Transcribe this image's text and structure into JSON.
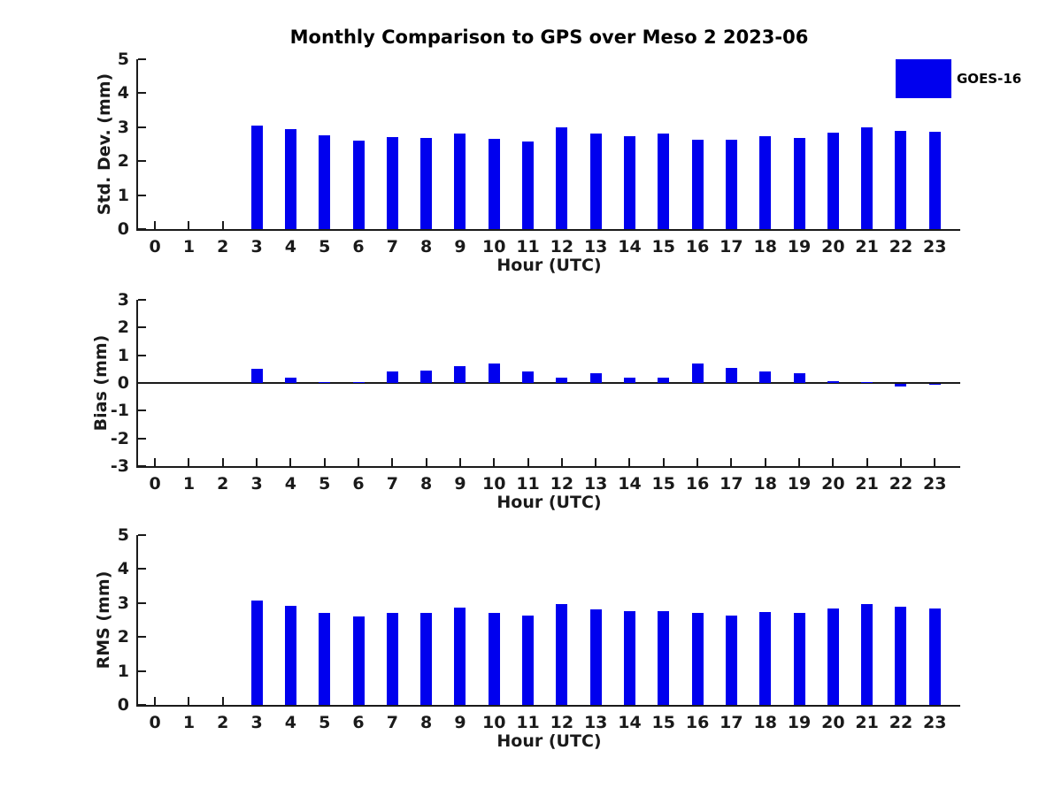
{
  "title": "Monthly Comparison to GPS over Meso 2 2023-06",
  "xlabel": "Hour (UTC)",
  "legend": {
    "label": "GOES-16",
    "color": "#0000ee"
  },
  "bar_color": "#0000ee",
  "chart_data": [
    {
      "type": "bar",
      "title": "Std. Dev. subplot",
      "ylabel": "Std. Dev. (mm)",
      "xlabel": "Hour (UTC)",
      "ylim": [
        0,
        5
      ],
      "yticks": [
        0,
        1,
        2,
        3,
        4,
        5
      ],
      "categories": [
        0,
        1,
        2,
        3,
        4,
        5,
        6,
        7,
        8,
        9,
        10,
        11,
        12,
        13,
        14,
        15,
        16,
        17,
        18,
        19,
        20,
        21,
        22,
        23
      ],
      "series": [
        {
          "name": "GOES-16",
          "values": [
            0,
            0,
            0,
            3.05,
            2.93,
            2.75,
            2.6,
            2.7,
            2.69,
            2.8,
            2.65,
            2.58,
            3.0,
            2.8,
            2.74,
            2.8,
            2.64,
            2.62,
            2.74,
            2.69,
            2.83,
            2.99,
            2.9,
            2.86
          ]
        }
      ],
      "grid": false,
      "legend_position": "upper right outside"
    },
    {
      "type": "bar",
      "title": "Bias subplot",
      "ylabel": "Bias (mm)",
      "xlabel": "Hour (UTC)",
      "ylim": [
        -3,
        3
      ],
      "yticks": [
        -3,
        -2,
        -1,
        0,
        1,
        2,
        3
      ],
      "categories": [
        0,
        1,
        2,
        3,
        4,
        5,
        6,
        7,
        8,
        9,
        10,
        11,
        12,
        13,
        14,
        15,
        16,
        17,
        18,
        19,
        20,
        21,
        22,
        23
      ],
      "series": [
        {
          "name": "GOES-16",
          "values": [
            0,
            0,
            0,
            0.52,
            0.2,
            0.04,
            0.02,
            0.4,
            0.46,
            0.62,
            0.7,
            0.43,
            0.2,
            0.36,
            0.18,
            0.18,
            0.7,
            0.55,
            0.43,
            0.36,
            0.05,
            0.04,
            -0.08,
            -0.03
          ]
        }
      ],
      "grid": false,
      "zero_line": true
    },
    {
      "type": "bar",
      "title": "RMS subplot",
      "ylabel": "RMS (mm)",
      "xlabel": "Hour (UTC)",
      "ylim": [
        0,
        5
      ],
      "yticks": [
        0,
        1,
        2,
        3,
        4,
        5
      ],
      "categories": [
        0,
        1,
        2,
        3,
        4,
        5,
        6,
        7,
        8,
        9,
        10,
        11,
        12,
        13,
        14,
        15,
        16,
        17,
        18,
        19,
        20,
        21,
        22,
        23
      ],
      "series": [
        {
          "name": "GOES-16",
          "values": [
            0,
            0,
            0,
            3.07,
            2.91,
            2.72,
            2.6,
            2.7,
            2.72,
            2.86,
            2.72,
            2.62,
            2.97,
            2.82,
            2.75,
            2.77,
            2.72,
            2.64,
            2.74,
            2.7,
            2.83,
            2.96,
            2.88,
            2.85
          ]
        }
      ],
      "grid": false
    }
  ]
}
